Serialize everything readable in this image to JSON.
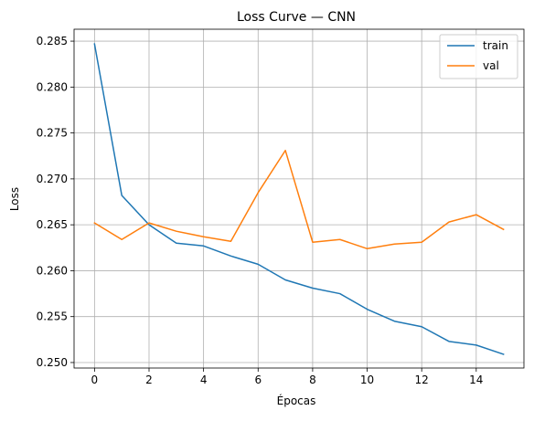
{
  "chart_data": {
    "type": "line",
    "title": "Loss Curve — CNN",
    "xlabel": "Épocas",
    "ylabel": "Loss",
    "x": [
      0,
      1,
      2,
      3,
      4,
      5,
      6,
      7,
      8,
      9,
      10,
      11,
      12,
      13,
      14,
      15
    ],
    "xlim": [
      -0.75,
      15.75
    ],
    "ylim": [
      0.2494,
      0.2863
    ],
    "x_ticks": [
      0,
      2,
      4,
      6,
      8,
      10,
      12,
      14
    ],
    "y_ticks": [
      0.25,
      0.255,
      0.26,
      0.265,
      0.27,
      0.275,
      0.28,
      0.285
    ],
    "grid": true,
    "legend_position": "upper right",
    "series": [
      {
        "name": "train",
        "color": "#1f77b4",
        "values": [
          0.2847,
          0.2682,
          0.265,
          0.263,
          0.2627,
          0.2616,
          0.2607,
          0.259,
          0.2581,
          0.2575,
          0.2558,
          0.2545,
          0.2539,
          0.2523,
          0.2519,
          0.2509
        ]
      },
      {
        "name": "val",
        "color": "#ff7f0e",
        "values": [
          0.2652,
          0.2634,
          0.2652,
          0.2643,
          0.2637,
          0.2632,
          0.2685,
          0.2731,
          0.2631,
          0.2634,
          0.2624,
          0.2629,
          0.2631,
          0.2653,
          0.2661,
          0.2645
        ]
      }
    ]
  }
}
